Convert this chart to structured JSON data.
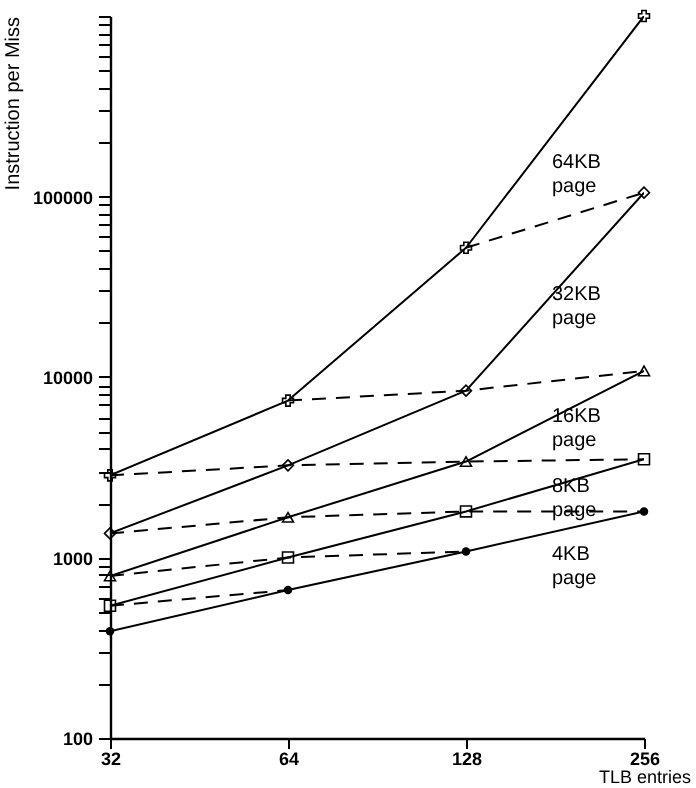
{
  "chart_data": {
    "type": "line",
    "xlabel": "TLB entries",
    "ylabel": "Instruction per Miss",
    "x": [
      32,
      64,
      128,
      256
    ],
    "log": "xy",
    "xlim": [
      32,
      256
    ],
    "xticks": [
      32,
      64,
      128,
      256
    ],
    "ylim": [
      100,
      1000000
    ],
    "yticks": [
      100,
      {
        "value": 200,
        "label": null
      },
      {
        "value": 300,
        "label": null
      },
      {
        "value": 400,
        "label": null
      },
      {
        "value": 500,
        "label": null
      },
      {
        "value": 600,
        "label": null
      },
      {
        "value": 700,
        "label": null
      },
      {
        "value": 800,
        "label": null
      },
      {
        "value": 900,
        "label": null
      },
      1000,
      {
        "value": 2000,
        "label": null
      },
      {
        "value": 3000,
        "label": null
      },
      {
        "value": 4000,
        "label": null
      },
      {
        "value": 5000,
        "label": null
      },
      {
        "value": 6000,
        "label": null
      },
      {
        "value": 7000,
        "label": null
      },
      {
        "value": 8000,
        "label": null
      },
      {
        "value": 9000,
        "label": null
      },
      10000,
      {
        "value": 20000,
        "label": null
      },
      {
        "value": 30000,
        "label": null
      },
      {
        "value": 40000,
        "label": null
      },
      {
        "value": 50000,
        "label": null
      },
      {
        "value": 60000,
        "label": null
      },
      {
        "value": 70000,
        "label": null
      },
      {
        "value": 80000,
        "label": null
      },
      {
        "value": 90000,
        "label": null
      },
      100000,
      {
        "value": 200000,
        "label": null
      },
      {
        "value": 300000,
        "label": null
      },
      {
        "value": 400000,
        "label": null
      },
      {
        "value": 500000,
        "label": null
      },
      {
        "value": 600000,
        "label": null
      },
      {
        "value": 700000,
        "label": null
      },
      {
        "value": 800000,
        "label": null
      },
      {
        "value": 900000,
        "label": null
      },
      {
        "value": 1000000,
        "label": null
      }
    ],
    "grid": false,
    "annotations": [
      "4KB page",
      "8KB page",
      "16KB page",
      "32KB page",
      "64KB page"
    ],
    "series": [
      {
        "color": "#000000",
        "marker": "circle",
        "line_style": "solid",
        "values": [
          390,
          660,
          1080,
          1800
        ]
      },
      {
        "color": "#000000",
        "marker": "square",
        "line_style": "solid",
        "values": [
          540,
          1000,
          1800,
          3500
        ]
      },
      {
        "color": "#000000",
        "marker": "triangle",
        "line_style": "solid",
        "values": [
          790,
          1670,
          3400,
          10800
        ]
      },
      {
        "color": "#000000",
        "marker": "diamond",
        "line_style": "solid",
        "values": [
          1360,
          3240,
          8400,
          105000
        ]
      },
      {
        "color": "#000000",
        "marker": "cross",
        "line_style": "solid",
        "values": [
          2850,
          7400,
          52000,
          1000000
        ]
      },
      {
        "color": "#000000",
        "marker": "none",
        "line_style": "dashed",
        "x": [
          32,
          64
        ],
        "values": [
          540,
          660
        ]
      },
      {
        "color": "#000000",
        "marker": "none",
        "line_style": "dashed",
        "x": [
          32,
          64,
          128
        ],
        "values": [
          790,
          1000,
          1080
        ]
      },
      {
        "color": "#000000",
        "marker": "none",
        "line_style": "dashed",
        "x": [
          32,
          64,
          128,
          256
        ],
        "values": [
          1360,
          1670,
          1800,
          1800
        ]
      },
      {
        "color": "#000000",
        "marker": "none",
        "line_style": "dashed",
        "x": [
          32,
          64,
          128,
          256
        ],
        "values": [
          2850,
          3240,
          3400,
          3500
        ]
      },
      {
        "color": "#000000",
        "marker": "none",
        "line_style": "dashed",
        "x": [
          64,
          128,
          256
        ],
        "values": [
          7400,
          8400,
          10800
        ]
      },
      {
        "color": "#000000",
        "marker": "none",
        "line_style": "dashed",
        "x": [
          128,
          256
        ],
        "values": [
          52000,
          105000
        ]
      }
    ]
  }
}
